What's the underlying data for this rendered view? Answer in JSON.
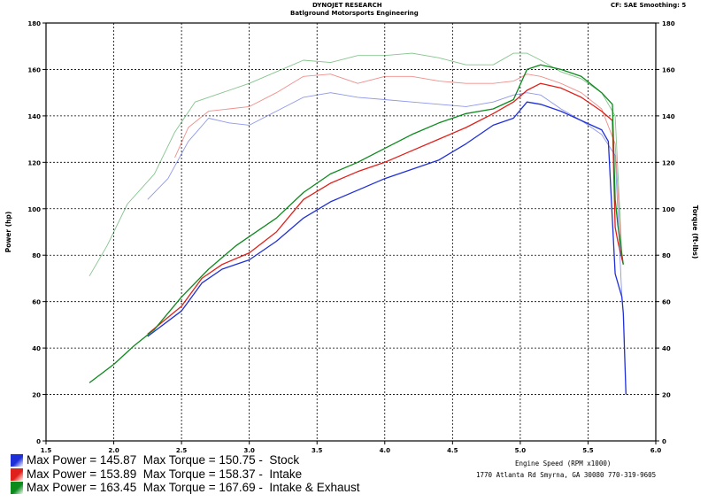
{
  "header": {
    "title": "DYNOJET RESEARCH",
    "subtitle": "Batlground Motorsports Engineering",
    "settings": "CF: SAE  Smoothing: 5"
  },
  "footer": {
    "x_axis_label": "Engine Speed (RPM x1000)",
    "address": "1770 Atlanta Rd Smyrna, GA 30080 770-319-9605"
  },
  "legend": [
    {
      "text": "Max Power = 145.87  Max Torque = 150.75 -  Stock",
      "color": "#1f2fd8"
    },
    {
      "text": "Max Power = 153.89  Max Torque = 158.37 -  Intake",
      "color": "#e0201a"
    },
    {
      "text": "Max Power = 163.45  Max Torque = 167.69 -  Intake & Exhaust",
      "color": "#0c8a1c"
    }
  ],
  "chart_data": {
    "type": "line",
    "title": "DYNOJET RESEARCH",
    "xlabel": "Engine Speed (RPM x1000)",
    "ylabel": "Power (hp)",
    "y2label": "Torque (ft-lbs)",
    "xlim": [
      1.5,
      6.0
    ],
    "ylim": [
      0,
      180
    ],
    "y2lim": [
      0,
      180
    ],
    "x_ticks": [
      "1.5",
      "2.0",
      "2.5",
      "3.0",
      "3.5",
      "4.0",
      "4.5",
      "5.0",
      "5.5",
      "6.0"
    ],
    "y_ticks": [
      "0",
      "20",
      "40",
      "60",
      "80",
      "100",
      "120",
      "140",
      "160",
      "180"
    ],
    "grid": true,
    "series": [
      {
        "name": "Stock",
        "measure": "power",
        "color": "#1f2fd8",
        "x": [
          2.25,
          2.5,
          2.65,
          2.8,
          3.0,
          3.2,
          3.4,
          3.6,
          3.8,
          4.0,
          4.2,
          4.4,
          4.6,
          4.8,
          4.95,
          5.05,
          5.15,
          5.3,
          5.45,
          5.6,
          5.65,
          5.7,
          5.75,
          5.76,
          5.78
        ],
        "y": [
          45,
          56,
          68,
          74,
          78,
          86,
          96,
          103,
          108,
          113,
          117,
          121,
          128,
          136,
          139,
          146,
          145,
          142,
          138,
          134,
          129,
          72,
          62,
          55,
          20
        ]
      },
      {
        "name": "Intake",
        "measure": "power",
        "color": "#e0201a",
        "x": [
          2.25,
          2.5,
          2.65,
          2.8,
          3.0,
          3.2,
          3.4,
          3.6,
          3.8,
          4.0,
          4.2,
          4.4,
          4.6,
          4.8,
          4.95,
          5.05,
          5.15,
          5.3,
          5.45,
          5.6,
          5.68,
          5.7,
          5.72,
          5.76
        ],
        "y": [
          46,
          58,
          70,
          76,
          81,
          90,
          104,
          111,
          116,
          120,
          125,
          130,
          135,
          141,
          146,
          151,
          154,
          152,
          148,
          142,
          138,
          92,
          86,
          76
        ]
      },
      {
        "name": "Intake & Exhaust",
        "measure": "power",
        "color": "#0c8a1c",
        "x": [
          1.82,
          2.0,
          2.15,
          2.3,
          2.5,
          2.7,
          2.9,
          3.0,
          3.2,
          3.4,
          3.6,
          3.8,
          4.0,
          4.2,
          4.4,
          4.6,
          4.8,
          4.95,
          5.05,
          5.15,
          5.3,
          5.45,
          5.6,
          5.68,
          5.7,
          5.72,
          5.76
        ],
        "y": [
          25,
          33,
          41,
          48,
          62,
          74,
          84,
          88,
          96,
          107,
          115,
          120,
          126,
          132,
          137,
          141,
          143,
          147,
          160,
          162,
          160,
          157,
          150,
          145,
          104,
          93,
          76
        ]
      },
      {
        "name": "Stock",
        "measure": "torque",
        "color": "#1f2fd8",
        "x": [
          2.25,
          2.4,
          2.55,
          2.7,
          2.85,
          3.0,
          3.2,
          3.4,
          3.6,
          3.8,
          4.0,
          4.2,
          4.4,
          4.6,
          4.8,
          4.95,
          5.05,
          5.15,
          5.3,
          5.45,
          5.6,
          5.7,
          5.75
        ],
        "y": [
          104,
          113,
          129,
          139,
          137,
          136,
          142,
          148,
          150,
          148,
          147,
          146,
          145,
          144,
          146,
          149,
          150,
          149,
          143,
          138,
          132,
          123,
          62
        ]
      },
      {
        "name": "Intake",
        "measure": "torque",
        "color": "#e0201a",
        "x": [
          2.45,
          2.55,
          2.7,
          2.85,
          3.0,
          3.2,
          3.4,
          3.6,
          3.8,
          4.0,
          4.2,
          4.4,
          4.6,
          4.8,
          4.95,
          5.05,
          5.15,
          5.3,
          5.45,
          5.6,
          5.7,
          5.75
        ],
        "y": [
          122,
          135,
          142,
          143,
          144,
          150,
          157,
          158,
          154,
          157,
          157,
          155,
          154,
          154,
          155,
          158,
          157,
          154,
          150,
          143,
          128,
          78
        ]
      },
      {
        "name": "Intake & Exhaust",
        "measure": "torque",
        "color": "#0c8a1c",
        "x": [
          1.82,
          1.95,
          2.1,
          2.3,
          2.45,
          2.6,
          2.8,
          3.0,
          3.2,
          3.4,
          3.6,
          3.8,
          4.0,
          4.2,
          4.4,
          4.6,
          4.8,
          4.95,
          5.05,
          5.15,
          5.3,
          5.45,
          5.6,
          5.7,
          5.75
        ],
        "y": [
          71,
          84,
          102,
          115,
          133,
          146,
          150,
          154,
          159,
          164,
          163,
          166,
          166,
          167,
          165,
          162,
          162,
          167,
          167,
          164,
          159,
          156,
          150,
          140,
          80
        ]
      }
    ]
  }
}
